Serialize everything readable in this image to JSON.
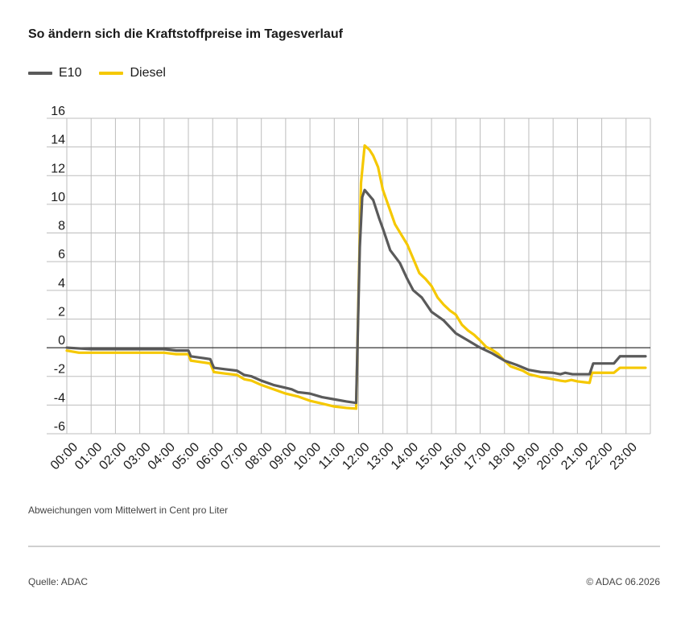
{
  "title": "So ändern sich die Kraftstoffpreise im Tagesverlauf",
  "note": "Abweichungen vom Mittelwert in Cent pro Liter",
  "source": "Quelle: ADAC",
  "copyright": "© ADAC 06.2026",
  "colors": {
    "e10": "#5a5a5a",
    "diesel": "#f5c800",
    "grid": "#bdbdbd",
    "zero": "#333333"
  },
  "chart_data": {
    "type": "line",
    "title": "So ändern sich die Kraftstoffpreise im Tagesverlauf",
    "ylabel": "",
    "xlabel": "",
    "ylim": [
      -6,
      16
    ],
    "yticks": [
      16,
      14,
      12,
      10,
      8,
      6,
      4,
      2,
      0,
      -2,
      -4,
      -6
    ],
    "xlim": [
      0,
      24
    ],
    "xticks": [
      "00:00",
      "01:00",
      "02:00",
      "03:00",
      "04:00",
      "05:00",
      "06:00",
      "07:00",
      "08:00",
      "09:00",
      "10:00",
      "11:00",
      "12:00",
      "13:00",
      "14:00",
      "15:00",
      "16:00",
      "17:00",
      "18:00",
      "19:00",
      "20:00",
      "21:00",
      "22:00",
      "23:00"
    ],
    "grid": true,
    "legend_position": "top-left",
    "series": [
      {
        "name": "E10",
        "color": "#5a5a5a",
        "points": [
          [
            0,
            0
          ],
          [
            1,
            -0.1
          ],
          [
            2,
            -0.1
          ],
          [
            3,
            -0.1
          ],
          [
            4,
            -0.1
          ],
          [
            4.5,
            -0.2
          ],
          [
            5,
            -0.2
          ],
          [
            5.1,
            -0.6
          ],
          [
            5.5,
            -0.7
          ],
          [
            5.9,
            -0.8
          ],
          [
            6.05,
            -1.4
          ],
          [
            6.5,
            -1.5
          ],
          [
            7,
            -1.6
          ],
          [
            7.3,
            -1.9
          ],
          [
            7.6,
            -2.0
          ],
          [
            8,
            -2.3
          ],
          [
            8.5,
            -2.6
          ],
          [
            9,
            -2.8
          ],
          [
            9.25,
            -2.9
          ],
          [
            9.5,
            -3.1
          ],
          [
            10,
            -3.2
          ],
          [
            10.5,
            -3.45
          ],
          [
            11,
            -3.6
          ],
          [
            11.5,
            -3.75
          ],
          [
            11.9,
            -3.85
          ],
          [
            12.05,
            7.0
          ],
          [
            12.15,
            10.5
          ],
          [
            12.25,
            11.0
          ],
          [
            12.6,
            10.3
          ],
          [
            12.85,
            9.0
          ],
          [
            13,
            8.3
          ],
          [
            13.3,
            6.8
          ],
          [
            13.7,
            5.9
          ],
          [
            14,
            4.8
          ],
          [
            14.25,
            4.0
          ],
          [
            14.6,
            3.5
          ],
          [
            15,
            2.5
          ],
          [
            15.5,
            1.9
          ],
          [
            16,
            1.0
          ],
          [
            16.5,
            0.5
          ],
          [
            17,
            0
          ],
          [
            17.5,
            -0.4
          ],
          [
            18,
            -0.9
          ],
          [
            18.5,
            -1.2
          ],
          [
            19,
            -1.55
          ],
          [
            19.5,
            -1.7
          ],
          [
            20,
            -1.75
          ],
          [
            20.3,
            -1.85
          ],
          [
            20.5,
            -1.75
          ],
          [
            20.8,
            -1.85
          ],
          [
            21.3,
            -1.85
          ],
          [
            21.5,
            -1.85
          ],
          [
            21.65,
            -1.1
          ],
          [
            22,
            -1.1
          ],
          [
            22.5,
            -1.1
          ],
          [
            22.75,
            -0.6
          ],
          [
            23,
            -0.6
          ],
          [
            23.8,
            -0.6
          ]
        ]
      },
      {
        "name": "Diesel",
        "color": "#f5c800",
        "points": [
          [
            0,
            -0.2
          ],
          [
            0.5,
            -0.35
          ],
          [
            1,
            -0.35
          ],
          [
            2,
            -0.35
          ],
          [
            3,
            -0.35
          ],
          [
            4,
            -0.35
          ],
          [
            4.5,
            -0.45
          ],
          [
            5,
            -0.45
          ],
          [
            5.1,
            -0.9
          ],
          [
            5.5,
            -1.0
          ],
          [
            5.9,
            -1.1
          ],
          [
            6.05,
            -1.7
          ],
          [
            6.5,
            -1.8
          ],
          [
            7,
            -1.9
          ],
          [
            7.3,
            -2.2
          ],
          [
            7.6,
            -2.3
          ],
          [
            8,
            -2.6
          ],
          [
            8.5,
            -2.9
          ],
          [
            9,
            -3.2
          ],
          [
            9.5,
            -3.4
          ],
          [
            10,
            -3.7
          ],
          [
            10.5,
            -3.9
          ],
          [
            11,
            -4.1
          ],
          [
            11.5,
            -4.2
          ],
          [
            11.9,
            -4.25
          ],
          [
            12,
            4.0
          ],
          [
            12.1,
            11.5
          ],
          [
            12.25,
            14.1
          ],
          [
            12.45,
            13.8
          ],
          [
            12.6,
            13.4
          ],
          [
            12.8,
            12.6
          ],
          [
            13,
            11.0
          ],
          [
            13.25,
            9.8
          ],
          [
            13.5,
            8.6
          ],
          [
            13.75,
            7.9
          ],
          [
            14,
            7.2
          ],
          [
            14.25,
            6.2
          ],
          [
            14.5,
            5.2
          ],
          [
            14.75,
            4.8
          ],
          [
            15,
            4.3
          ],
          [
            15.25,
            3.5
          ],
          [
            15.5,
            3.0
          ],
          [
            15.75,
            2.6
          ],
          [
            16,
            2.3
          ],
          [
            16.25,
            1.6
          ],
          [
            16.5,
            1.2
          ],
          [
            16.75,
            0.9
          ],
          [
            17,
            0.5
          ],
          [
            17.25,
            0.05
          ],
          [
            17.5,
            -0.15
          ],
          [
            17.75,
            -0.45
          ],
          [
            18,
            -0.9
          ],
          [
            18.25,
            -1.3
          ],
          [
            18.5,
            -1.45
          ],
          [
            18.75,
            -1.6
          ],
          [
            19,
            -1.85
          ],
          [
            19.5,
            -2.05
          ],
          [
            20,
            -2.2
          ],
          [
            20.3,
            -2.3
          ],
          [
            20.5,
            -2.35
          ],
          [
            20.75,
            -2.25
          ],
          [
            21,
            -2.35
          ],
          [
            21.25,
            -2.4
          ],
          [
            21.5,
            -2.45
          ],
          [
            21.6,
            -1.75
          ],
          [
            22,
            -1.75
          ],
          [
            22.5,
            -1.75
          ],
          [
            22.75,
            -1.4
          ],
          [
            23,
            -1.4
          ],
          [
            23.8,
            -1.4
          ]
        ]
      }
    ]
  }
}
